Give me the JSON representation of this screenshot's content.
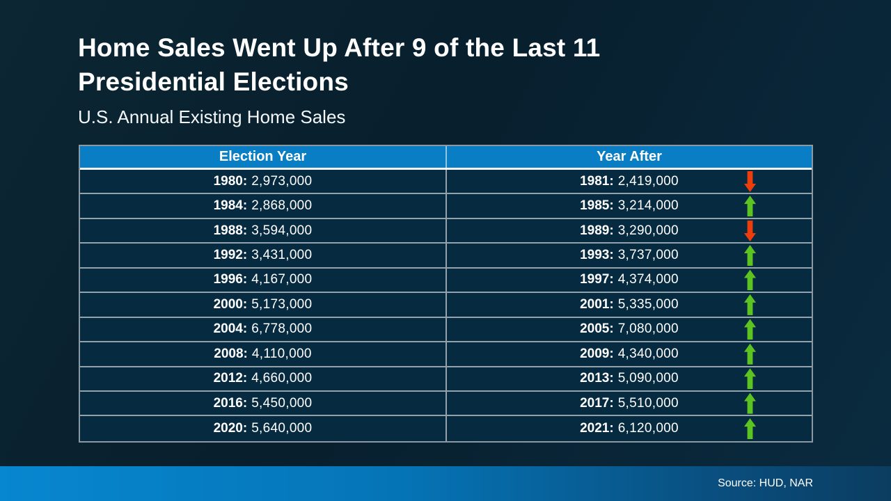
{
  "title_lines": [
    "Home Sales Went Up After 9 of the Last 11",
    "Presidential Elections"
  ],
  "subtitle": "U.S. Annual Existing Home Sales",
  "table": {
    "headers": [
      "Election Year",
      "Year After"
    ],
    "rows": [
      {
        "election_year_label": "1980:",
        "election_value": "2,973,000",
        "year_after_label": "1981:",
        "year_after_value": "2,419,000",
        "trend": "down"
      },
      {
        "election_year_label": "1984:",
        "election_value": "2,868,000",
        "year_after_label": "1985:",
        "year_after_value": "3,214,000",
        "trend": "up"
      },
      {
        "election_year_label": "1988:",
        "election_value": "3,594,000",
        "year_after_label": "1989:",
        "year_after_value": "3,290,000",
        "trend": "down"
      },
      {
        "election_year_label": "1992:",
        "election_value": "3,431,000",
        "year_after_label": "1993:",
        "year_after_value": "3,737,000",
        "trend": "up"
      },
      {
        "election_year_label": "1996:",
        "election_value": "4,167,000",
        "year_after_label": "1997:",
        "year_after_value": "4,374,000",
        "trend": "up"
      },
      {
        "election_year_label": "2000:",
        "election_value": "5,173,000",
        "year_after_label": "2001:",
        "year_after_value": "5,335,000",
        "trend": "up"
      },
      {
        "election_year_label": "2004:",
        "election_value": "6,778,000",
        "year_after_label": "2005:",
        "year_after_value": "7,080,000",
        "trend": "up"
      },
      {
        "election_year_label": "2008:",
        "election_value": "4,110,000",
        "year_after_label": "2009:",
        "year_after_value": "4,340,000",
        "trend": "up"
      },
      {
        "election_year_label": "2012:",
        "election_value": "4,660,000",
        "year_after_label": "2013:",
        "year_after_value": "5,090,000",
        "trend": "up"
      },
      {
        "election_year_label": "2016:",
        "election_value": "5,450,000",
        "year_after_label": "2017:",
        "year_after_value": "5,510,000",
        "trend": "up"
      },
      {
        "election_year_label": "2020:",
        "election_value": "5,640,000",
        "year_after_label": "2021:",
        "year_after_value": "6,120,000",
        "trend": "up"
      }
    ]
  },
  "footer": {
    "source_label": "Source: HUD, NAR"
  },
  "colors": {
    "background": "#0a2534",
    "header_bg": "#0a7ec4",
    "row_bg": "#062a40",
    "row_border": "#93a2ab",
    "up_arrow": "#5cc321",
    "down_arrow": "#ee3d0c",
    "footer_gradient_left": "#0787d0",
    "footer_gradient_right": "#0b3d60",
    "text": "#ffffff"
  },
  "chart_data": {
    "type": "table",
    "title": "Home Sales Went Up After 9 of the Last 11 Presidential Elections",
    "subtitle": "U.S. Annual Existing Home Sales",
    "columns": [
      "Election Year",
      "Year After"
    ],
    "rows": [
      {
        "election_year": 1980,
        "election_sales": 2973000,
        "year_after": 1981,
        "year_after_sales": 2419000,
        "direction": "down"
      },
      {
        "election_year": 1984,
        "election_sales": 2868000,
        "year_after": 1985,
        "year_after_sales": 3214000,
        "direction": "up"
      },
      {
        "election_year": 1988,
        "election_sales": 3594000,
        "year_after": 1989,
        "year_after_sales": 3290000,
        "direction": "down"
      },
      {
        "election_year": 1992,
        "election_sales": 3431000,
        "year_after": 1993,
        "year_after_sales": 3737000,
        "direction": "up"
      },
      {
        "election_year": 1996,
        "election_sales": 4167000,
        "year_after": 1997,
        "year_after_sales": 4374000,
        "direction": "up"
      },
      {
        "election_year": 2000,
        "election_sales": 5173000,
        "year_after": 2001,
        "year_after_sales": 5335000,
        "direction": "up"
      },
      {
        "election_year": 2004,
        "election_sales": 6778000,
        "year_after": 2005,
        "year_after_sales": 7080000,
        "direction": "up"
      },
      {
        "election_year": 2008,
        "election_sales": 4110000,
        "year_after": 2009,
        "year_after_sales": 4340000,
        "direction": "up"
      },
      {
        "election_year": 2012,
        "election_sales": 4660000,
        "year_after": 2013,
        "year_after_sales": 5090000,
        "direction": "up"
      },
      {
        "election_year": 2016,
        "election_sales": 5450000,
        "year_after": 2017,
        "year_after_sales": 5510000,
        "direction": "up"
      },
      {
        "election_year": 2020,
        "election_sales": 5640000,
        "year_after": 2021,
        "year_after_sales": 6120000,
        "direction": "up"
      }
    ],
    "source": "Source: HUD, NAR"
  }
}
